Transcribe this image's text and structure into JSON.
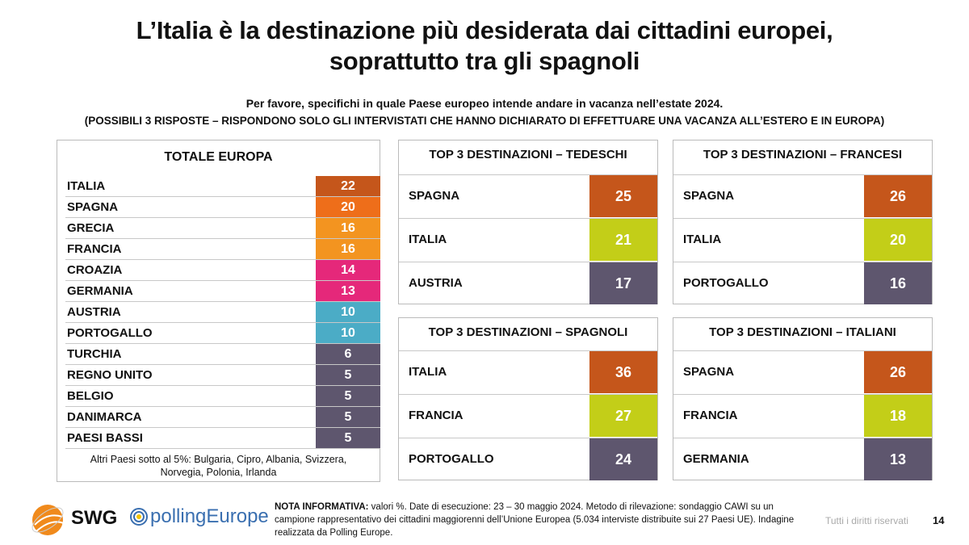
{
  "title_line1": "L’Italia è la destinazione più desiderata dai cittadini europei,",
  "title_line2": "soprattutto tra gli spagnoli",
  "question_line1": "Per favore, specifichi in quale Paese europeo intende andare in vacanza nell’estate 2024.",
  "question_line2": "(POSSIBILI 3 RISPOSTE – RISPONDONO SOLO GLI INTERVISTATI CHE HANNO DICHIARATO DI EFFETTUARE UNA VACANZA ALL’ESTERO E IN EUROPA)",
  "totale": {
    "title": "TOTALE EUROPA",
    "rows": [
      {
        "label": "ITALIA",
        "value": "22",
        "color": "#C5561B"
      },
      {
        "label": "SPAGNA",
        "value": "20",
        "color": "#EE6E1A"
      },
      {
        "label": "GRECIA",
        "value": "16",
        "color": "#F39420"
      },
      {
        "label": "FRANCIA",
        "value": "16",
        "color": "#F39420"
      },
      {
        "label": "CROAZIA",
        "value": "14",
        "color": "#E5287A"
      },
      {
        "label": "GERMANIA",
        "value": "13",
        "color": "#E5287A"
      },
      {
        "label": "AUSTRIA",
        "value": "10",
        "color": "#4BACC6"
      },
      {
        "label": "PORTOGALLO",
        "value": "10",
        "color": "#4BACC6"
      },
      {
        "label": "TURCHIA",
        "value": "6",
        "color": "#5E566E"
      },
      {
        "label": "REGNO UNITO",
        "value": "5",
        "color": "#5E566E"
      },
      {
        "label": "BELGIO",
        "value": "5",
        "color": "#5E566E"
      },
      {
        "label": "DANIMARCA",
        "value": "5",
        "color": "#5E566E"
      },
      {
        "label": "PAESI BASSI",
        "value": "5",
        "color": "#5E566E"
      }
    ],
    "footnote_line1": "Altri Paesi sotto al 5%: Bulgaria, Cipro, Albania, Svizzera,",
    "footnote_line2": "Norvegia, Polonia, Irlanda"
  },
  "rank_colors": [
    "#C5561B",
    "#C3CE18",
    "#5E566E"
  ],
  "panels": [
    {
      "title": "TOP 3 DESTINAZIONI – TEDESCHI",
      "rows": [
        {
          "label": "SPAGNA",
          "value": "25"
        },
        {
          "label": "ITALIA",
          "value": "21"
        },
        {
          "label": "AUSTRIA",
          "value": "17"
        }
      ]
    },
    {
      "title": "TOP 3 DESTINAZIONI – FRANCESI",
      "rows": [
        {
          "label": "SPAGNA",
          "value": "26"
        },
        {
          "label": "ITALIA",
          "value": "20"
        },
        {
          "label": "PORTOGALLO",
          "value": "16"
        }
      ]
    },
    {
      "title": "TOP 3 DESTINAZIONI – SPAGNOLI",
      "rows": [
        {
          "label": "ITALIA",
          "value": "36"
        },
        {
          "label": "FRANCIA",
          "value": "27"
        },
        {
          "label": "PORTOGALLO",
          "value": "24"
        }
      ]
    },
    {
      "title": "TOP 3 DESTINAZIONI – ITALIANI",
      "rows": [
        {
          "label": "SPAGNA",
          "value": "26"
        },
        {
          "label": "FRANCIA",
          "value": "18"
        },
        {
          "label": "GERMANIA",
          "value": "13"
        }
      ]
    }
  ],
  "footer": {
    "logo_swg": "SWG",
    "logo_polling": "pollingEurope",
    "note_bold": "NOTA INFORMATIVA:",
    "note_text": " valori %. Date di esecuzione: 23 – 30 maggio 2024. Metodo di rilevazione: sondaggio CAWI su un campione rappresentativo dei cittadini maggiorenni dell’Unione Europea (5.034 interviste distribuite sui 27 Paesi UE). Indagine realizzata da Polling Europe.",
    "rights": "Tutti i diritti riservati",
    "page": "14"
  }
}
